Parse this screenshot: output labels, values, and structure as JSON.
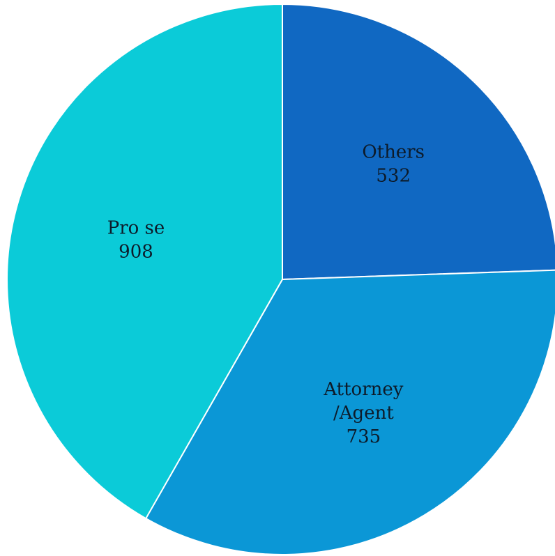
{
  "chart_data": {
    "type": "pie",
    "title": "",
    "start_angle_deg": 0,
    "direction": "clockwise",
    "slices": [
      {
        "label": [
          "Others"
        ],
        "value": 532,
        "value_text": "532",
        "color": "#1068c2"
      },
      {
        "label": [
          "Attorney",
          "/Agent"
        ],
        "value": 735,
        "value_text": "735",
        "color": "#0b97d6"
      },
      {
        "label": [
          "Pro se"
        ],
        "value": 908,
        "value_text": "908",
        "color": "#0bcbd8"
      }
    ],
    "legend": "none",
    "data_labels": "inside"
  }
}
